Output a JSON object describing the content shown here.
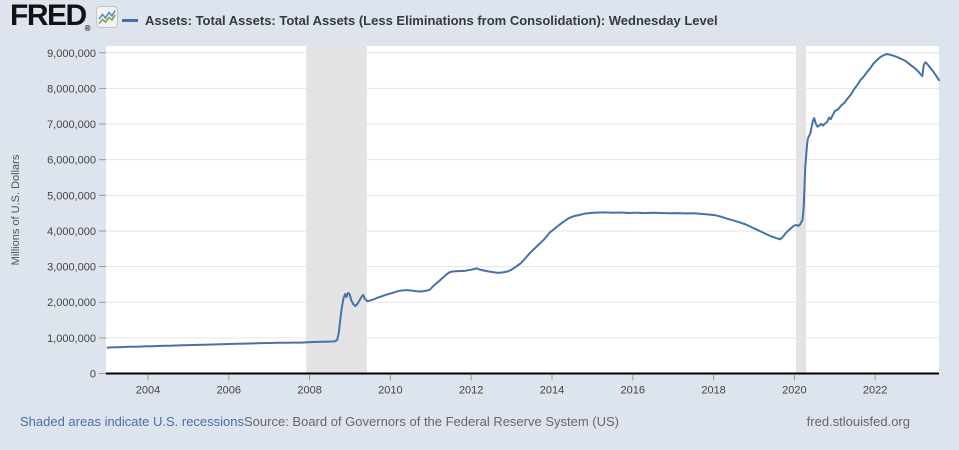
{
  "header": {
    "logo_text": "FRED",
    "registered_mark": "®",
    "legend_label": "Assets: Total Assets: Total Assets (Less Eliminations from Consolidation): Wednesday Level"
  },
  "footer": {
    "recession_note": "Shaded areas indicate U.S. recessions",
    "source": "Source: Board of Governors of the Federal Reserve System (US)",
    "site": "fred.stlouisfed.org"
  },
  "colors": {
    "page_background": "#dde4ed",
    "plot_background": "#ffffff",
    "line": "#4572a7",
    "grid": "#e5e5e5",
    "recession_band": "#e3e3e3",
    "axis_line": "#000000",
    "tick": "#999999",
    "tick_label": "#444444",
    "logo_icon_blue": "#5b8ac5",
    "logo_icon_green": "#7aa85c"
  },
  "chart_data": {
    "type": "line",
    "title": "Assets: Total Assets: Total Assets (Less Eliminations from Consolidation): Wednesday Level",
    "xlabel": "",
    "ylabel": "Millions of U.S. Dollars",
    "grid": true,
    "legend_position": "top",
    "xlim": [
      2002.96,
      2023.58
    ],
    "ylim": [
      0,
      9190000
    ],
    "x_ticks": [
      2004,
      2006,
      2008,
      2010,
      2012,
      2014,
      2016,
      2018,
      2020,
      2022
    ],
    "x_tick_labels": [
      "2004",
      "2006",
      "2008",
      "2010",
      "2012",
      "2014",
      "2016",
      "2018",
      "2020",
      "2022"
    ],
    "y_ticks": [
      0,
      1000000,
      2000000,
      3000000,
      4000000,
      5000000,
      6000000,
      7000000,
      8000000,
      9000000
    ],
    "y_tick_labels": [
      "0",
      "1,000,000",
      "2,000,000",
      "3,000,000",
      "4,000,000",
      "5,000,000",
      "6,000,000",
      "7,000,000",
      "8,000,000",
      "9,000,000"
    ],
    "recession_bands": [
      [
        2007.917,
        2009.417
      ],
      [
        2020.04,
        2020.29
      ]
    ],
    "series": [
      {
        "name": "Assets: Total Assets: Total Assets (Less Eliminations from Consolidation): Wednesday Level",
        "units": "Millions of U.S. Dollars",
        "points": [
          [
            2003.0,
            728000
          ],
          [
            2003.1,
            732000
          ],
          [
            2003.2,
            736000
          ],
          [
            2003.35,
            742000
          ],
          [
            2003.5,
            748000
          ],
          [
            2003.65,
            752000
          ],
          [
            2003.8,
            756000
          ],
          [
            2003.95,
            762000
          ],
          [
            2004.1,
            766000
          ],
          [
            2004.25,
            771000
          ],
          [
            2004.4,
            776000
          ],
          [
            2004.55,
            781000
          ],
          [
            2004.7,
            786000
          ],
          [
            2004.85,
            791000
          ],
          [
            2005.0,
            796000
          ],
          [
            2005.2,
            802000
          ],
          [
            2005.4,
            808000
          ],
          [
            2005.6,
            814000
          ],
          [
            2005.8,
            821000
          ],
          [
            2006.0,
            828000
          ],
          [
            2006.2,
            834000
          ],
          [
            2006.4,
            840000
          ],
          [
            2006.6,
            846000
          ],
          [
            2006.8,
            852000
          ],
          [
            2007.0,
            857000
          ],
          [
            2007.2,
            861000
          ],
          [
            2007.4,
            864000
          ],
          [
            2007.6,
            866000
          ],
          [
            2007.8,
            868000
          ],
          [
            2007.95,
            878000
          ],
          [
            2008.1,
            884000
          ],
          [
            2008.3,
            889000
          ],
          [
            2008.5,
            894000
          ],
          [
            2008.62,
            901000
          ],
          [
            2008.68,
            940000
          ],
          [
            2008.72,
            1120000
          ],
          [
            2008.76,
            1520000
          ],
          [
            2008.8,
            1870000
          ],
          [
            2008.84,
            2110000
          ],
          [
            2008.88,
            2230000
          ],
          [
            2008.91,
            2140000
          ],
          [
            2008.95,
            2260000
          ],
          [
            2008.99,
            2230000
          ],
          [
            2009.03,
            2060000
          ],
          [
            2009.08,
            1950000
          ],
          [
            2009.13,
            1890000
          ],
          [
            2009.18,
            1950000
          ],
          [
            2009.24,
            2060000
          ],
          [
            2009.29,
            2160000
          ],
          [
            2009.33,
            2200000
          ],
          [
            2009.37,
            2090000
          ],
          [
            2009.43,
            2030000
          ],
          [
            2009.5,
            2050000
          ],
          [
            2009.58,
            2080000
          ],
          [
            2009.66,
            2120000
          ],
          [
            2009.74,
            2150000
          ],
          [
            2009.82,
            2180000
          ],
          [
            2009.9,
            2210000
          ],
          [
            2009.98,
            2240000
          ],
          [
            2010.08,
            2270000
          ],
          [
            2010.18,
            2310000
          ],
          [
            2010.28,
            2330000
          ],
          [
            2010.4,
            2340000
          ],
          [
            2010.52,
            2330000
          ],
          [
            2010.64,
            2310000
          ],
          [
            2010.76,
            2300000
          ],
          [
            2010.88,
            2320000
          ],
          [
            2010.97,
            2350000
          ],
          [
            2011.07,
            2460000
          ],
          [
            2011.17,
            2560000
          ],
          [
            2011.27,
            2660000
          ],
          [
            2011.37,
            2760000
          ],
          [
            2011.45,
            2830000
          ],
          [
            2011.53,
            2862000
          ],
          [
            2011.63,
            2870000
          ],
          [
            2011.75,
            2876000
          ],
          [
            2011.87,
            2884000
          ],
          [
            2012.0,
            2912000
          ],
          [
            2012.08,
            2932000
          ],
          [
            2012.14,
            2948000
          ],
          [
            2012.2,
            2918000
          ],
          [
            2012.3,
            2892000
          ],
          [
            2012.42,
            2866000
          ],
          [
            2012.54,
            2844000
          ],
          [
            2012.66,
            2824000
          ],
          [
            2012.78,
            2836000
          ],
          [
            2012.9,
            2862000
          ],
          [
            2013.0,
            2916000
          ],
          [
            2013.1,
            2992000
          ],
          [
            2013.22,
            3090000
          ],
          [
            2013.34,
            3230000
          ],
          [
            2013.46,
            3390000
          ],
          [
            2013.58,
            3520000
          ],
          [
            2013.7,
            3650000
          ],
          [
            2013.82,
            3780000
          ],
          [
            2013.94,
            3950000
          ],
          [
            2014.06,
            4060000
          ],
          [
            2014.18,
            4170000
          ],
          [
            2014.3,
            4270000
          ],
          [
            2014.42,
            4360000
          ],
          [
            2014.54,
            4415000
          ],
          [
            2014.66,
            4445000
          ],
          [
            2014.8,
            4480000
          ],
          [
            2014.94,
            4505000
          ],
          [
            2015.1,
            4516000
          ],
          [
            2015.3,
            4522000
          ],
          [
            2015.5,
            4512000
          ],
          [
            2015.7,
            4518000
          ],
          [
            2015.9,
            4505000
          ],
          [
            2016.1,
            4512000
          ],
          [
            2016.3,
            4502000
          ],
          [
            2016.5,
            4512000
          ],
          [
            2016.7,
            4505000
          ],
          [
            2016.9,
            4496000
          ],
          [
            2017.1,
            4502000
          ],
          [
            2017.3,
            4492000
          ],
          [
            2017.5,
            4498000
          ],
          [
            2017.7,
            4478000
          ],
          [
            2017.9,
            4460000
          ],
          [
            2018.05,
            4440000
          ],
          [
            2018.2,
            4395000
          ],
          [
            2018.35,
            4340000
          ],
          [
            2018.5,
            4290000
          ],
          [
            2018.65,
            4240000
          ],
          [
            2018.8,
            4180000
          ],
          [
            2018.95,
            4100000
          ],
          [
            2019.1,
            4020000
          ],
          [
            2019.25,
            3940000
          ],
          [
            2019.4,
            3860000
          ],
          [
            2019.55,
            3800000
          ],
          [
            2019.65,
            3765000
          ],
          [
            2019.72,
            3840000
          ],
          [
            2019.78,
            3930000
          ],
          [
            2019.85,
            4010000
          ],
          [
            2019.92,
            4080000
          ],
          [
            2019.99,
            4150000
          ],
          [
            2020.05,
            4168000
          ],
          [
            2020.1,
            4146000
          ],
          [
            2020.14,
            4178000
          ],
          [
            2020.17,
            4242000
          ],
          [
            2020.2,
            4310000
          ],
          [
            2020.23,
            4670000
          ],
          [
            2020.25,
            5250000
          ],
          [
            2020.27,
            5810000
          ],
          [
            2020.29,
            6083000
          ],
          [
            2020.31,
            6370000
          ],
          [
            2020.33,
            6573000
          ],
          [
            2020.36,
            6660000
          ],
          [
            2020.4,
            6750000
          ],
          [
            2020.43,
            6935000
          ],
          [
            2020.46,
            7100000
          ],
          [
            2020.49,
            7168000
          ],
          [
            2020.53,
            7010000
          ],
          [
            2020.57,
            6925000
          ],
          [
            2020.63,
            6965000
          ],
          [
            2020.67,
            7005000
          ],
          [
            2020.71,
            6955000
          ],
          [
            2020.76,
            7015000
          ],
          [
            2020.81,
            7060000
          ],
          [
            2020.86,
            7180000
          ],
          [
            2020.9,
            7135000
          ],
          [
            2020.95,
            7250000
          ],
          [
            2021.0,
            7363000
          ],
          [
            2021.08,
            7415000
          ],
          [
            2021.16,
            7520000
          ],
          [
            2021.24,
            7600000
          ],
          [
            2021.32,
            7720000
          ],
          [
            2021.4,
            7830000
          ],
          [
            2021.48,
            7980000
          ],
          [
            2021.56,
            8100000
          ],
          [
            2021.64,
            8240000
          ],
          [
            2021.72,
            8340000
          ],
          [
            2021.8,
            8460000
          ],
          [
            2021.88,
            8570000
          ],
          [
            2021.96,
            8700000
          ],
          [
            2022.04,
            8790000
          ],
          [
            2022.12,
            8870000
          ],
          [
            2022.2,
            8925000
          ],
          [
            2022.28,
            8962000
          ],
          [
            2022.36,
            8950000
          ],
          [
            2022.44,
            8920000
          ],
          [
            2022.52,
            8890000
          ],
          [
            2022.6,
            8850000
          ],
          [
            2022.68,
            8810000
          ],
          [
            2022.76,
            8760000
          ],
          [
            2022.84,
            8690000
          ],
          [
            2022.92,
            8620000
          ],
          [
            2023.0,
            8550000
          ],
          [
            2023.07,
            8470000
          ],
          [
            2023.13,
            8390000
          ],
          [
            2023.17,
            8342000
          ],
          [
            2023.2,
            8640000
          ],
          [
            2023.24,
            8734000
          ],
          [
            2023.28,
            8700000
          ],
          [
            2023.34,
            8612000
          ],
          [
            2023.42,
            8500000
          ],
          [
            2023.5,
            8370000
          ],
          [
            2023.58,
            8230000
          ]
        ]
      }
    ]
  }
}
